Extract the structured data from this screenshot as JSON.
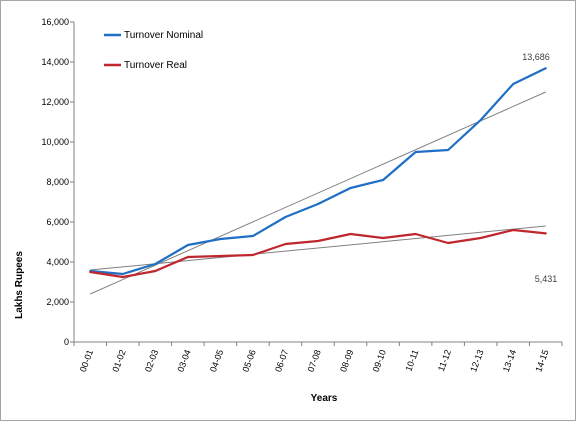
{
  "chart_data": {
    "type": "line",
    "title": "",
    "xlabel": "Years",
    "ylabel": "Lakhs Rupees",
    "categories": [
      "00-01",
      "01-02",
      "02-03",
      "03-04",
      "04-05",
      "05-06",
      "06-07",
      "07-08",
      "08-09",
      "09-10",
      "10-11",
      "11-12",
      "12-13",
      "13-14",
      "14-15"
    ],
    "ylim": [
      0,
      16000
    ],
    "yticks": [
      0,
      2000,
      4000,
      6000,
      8000,
      10000,
      12000,
      14000,
      16000
    ],
    "ytick_labels": [
      "0",
      "2,000",
      "4,000",
      "6,000",
      "8,000",
      "10,000",
      "12,000",
      "14,000",
      "16,000"
    ],
    "grid": false,
    "legend_position": "top-left",
    "series": [
      {
        "name": "Turnover Nominal",
        "color": "#1f6fc5",
        "values": [
          3550,
          3400,
          3900,
          4850,
          5150,
          5300,
          6250,
          6900,
          7700,
          8100,
          9500,
          9600,
          11100,
          12900,
          13686
        ],
        "trend": [
          2400,
          12500
        ]
      },
      {
        "name": "Turnover Real",
        "color": "#c0262d",
        "values": [
          3500,
          3250,
          3550,
          4250,
          4300,
          4350,
          4900,
          5050,
          5400,
          5200,
          5400,
          4950,
          5200,
          5600,
          5431
        ],
        "trend": [
          3600,
          5800
        ]
      }
    ],
    "trendline_color": "#808080",
    "annotations": [
      "13,686",
      "5,431"
    ]
  }
}
